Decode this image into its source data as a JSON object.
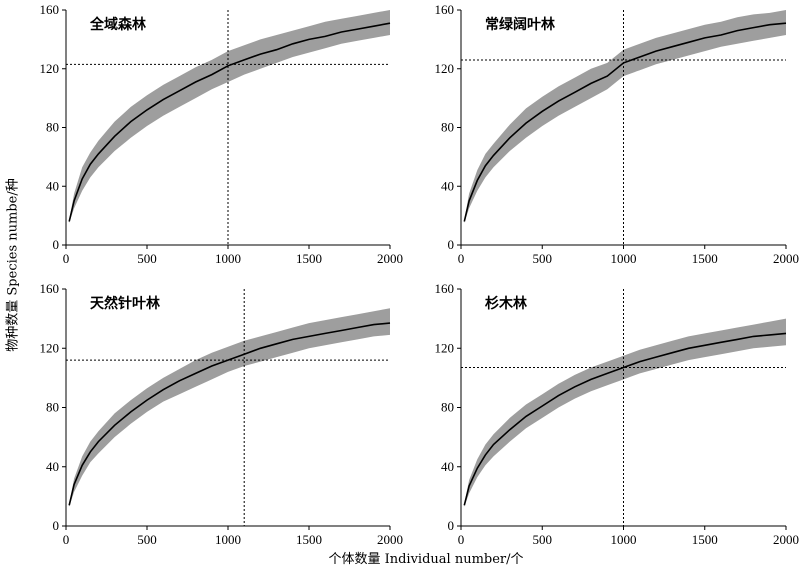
{
  "figure": {
    "ylabel": "物种数量 Species numbe/种",
    "xlabel": "个体数量 Individual number/个"
  },
  "chart_data": [
    {
      "type": "line",
      "title": "全域森林",
      "x_ticks": [
        "0",
        "500",
        "1000",
        "1500",
        "2000"
      ],
      "y_ticks": [
        "0",
        "40",
        "80",
        "120",
        "160"
      ],
      "xlim": [
        0,
        2000
      ],
      "ylim": [
        0,
        160
      ],
      "band_color": "#9e9e9e",
      "line_color": "#000000",
      "x": [
        20,
        50,
        100,
        150,
        200,
        300,
        400,
        500,
        600,
        700,
        800,
        900,
        1000,
        1100,
        1200,
        1300,
        1400,
        1500,
        1600,
        1700,
        1800,
        1900,
        2000
      ],
      "mean": [
        16,
        30,
        45,
        55,
        62,
        74,
        84,
        92,
        99,
        105,
        111,
        116,
        122,
        126,
        130,
        133,
        137,
        140,
        142,
        145,
        147,
        149,
        151
      ],
      "lower": [
        15,
        25,
        37,
        46,
        53,
        64,
        73,
        81,
        88,
        94,
        100,
        106,
        111,
        116,
        120,
        124,
        128,
        131,
        134,
        137,
        139,
        141,
        143
      ],
      "upper": [
        17,
        35,
        53,
        63,
        71,
        84,
        94,
        102,
        109,
        115,
        121,
        126,
        132,
        136,
        140,
        143,
        146,
        149,
        152,
        154,
        156,
        158,
        160
      ],
      "ref_x": 1000,
      "ref_y": 123
    },
    {
      "type": "line",
      "title": "常绿阔叶林",
      "x_ticks": [
        "0",
        "500",
        "1000",
        "1500",
        "2000"
      ],
      "y_ticks": [
        "0",
        "40",
        "80",
        "120",
        "160"
      ],
      "xlim": [
        0,
        2000
      ],
      "ylim": [
        0,
        160
      ],
      "band_color": "#9e9e9e",
      "line_color": "#000000",
      "x": [
        20,
        50,
        100,
        150,
        200,
        300,
        400,
        500,
        600,
        700,
        800,
        900,
        1000,
        1100,
        1200,
        1300,
        1400,
        1500,
        1600,
        1700,
        1800,
        1900,
        2000
      ],
      "mean": [
        16,
        30,
        44,
        54,
        61,
        73,
        83,
        91,
        98,
        104,
        110,
        115,
        124,
        128,
        132,
        135,
        138,
        141,
        143,
        146,
        148,
        150,
        151
      ],
      "lower": [
        15,
        25,
        37,
        46,
        53,
        64,
        73,
        81,
        88,
        94,
        100,
        106,
        115,
        119,
        123,
        126,
        129,
        132,
        135,
        137,
        139,
        141,
        143
      ],
      "upper": [
        17,
        35,
        51,
        62,
        69,
        82,
        93,
        101,
        108,
        114,
        120,
        124,
        133,
        137,
        141,
        144,
        147,
        150,
        152,
        155,
        157,
        158,
        160
      ],
      "ref_x": 1000,
      "ref_y": 126
    },
    {
      "type": "line",
      "title": "天然针叶林",
      "x_ticks": [
        "0",
        "500",
        "1000",
        "1500",
        "2000"
      ],
      "y_ticks": [
        "0",
        "40",
        "80",
        "120",
        "160"
      ],
      "xlim": [
        0,
        2000
      ],
      "ylim": [
        0,
        160
      ],
      "band_color": "#9e9e9e",
      "line_color": "#000000",
      "x": [
        20,
        50,
        100,
        150,
        200,
        300,
        400,
        500,
        600,
        700,
        800,
        900,
        1000,
        1100,
        1200,
        1300,
        1400,
        1500,
        1600,
        1700,
        1800,
        1900,
        2000
      ],
      "mean": [
        14,
        28,
        41,
        50,
        57,
        68,
        77,
        85,
        92,
        98,
        103,
        108,
        112,
        116,
        120,
        123,
        126,
        128,
        130,
        132,
        134,
        136,
        137
      ],
      "lower": [
        13,
        23,
        34,
        43,
        49,
        60,
        69,
        77,
        84,
        89,
        94,
        99,
        104,
        108,
        111,
        114,
        117,
        120,
        122,
        124,
        126,
        128,
        129
      ],
      "upper": [
        15,
        32,
        47,
        57,
        64,
        76,
        85,
        93,
        100,
        106,
        112,
        117,
        121,
        125,
        128,
        131,
        134,
        137,
        139,
        141,
        143,
        145,
        147
      ],
      "ref_x": 1100,
      "ref_y": 112
    },
    {
      "type": "line",
      "title": "杉木林",
      "x_ticks": [
        "0",
        "500",
        "1000",
        "1500",
        "2000"
      ],
      "y_ticks": [
        "0",
        "40",
        "80",
        "120",
        "160"
      ],
      "xlim": [
        0,
        2000
      ],
      "ylim": [
        0,
        160
      ],
      "band_color": "#9e9e9e",
      "line_color": "#000000",
      "x": [
        20,
        50,
        100,
        150,
        200,
        300,
        400,
        500,
        600,
        700,
        800,
        900,
        1000,
        1100,
        1200,
        1300,
        1400,
        1500,
        1600,
        1700,
        1800,
        1900,
        2000
      ],
      "mean": [
        14,
        27,
        39,
        48,
        55,
        65,
        74,
        81,
        88,
        94,
        99,
        103,
        107,
        111,
        114,
        117,
        120,
        122,
        124,
        126,
        128,
        129,
        130
      ],
      "lower": [
        13,
        22,
        33,
        41,
        47,
        57,
        66,
        73,
        80,
        86,
        91,
        95,
        99,
        103,
        106,
        109,
        112,
        114,
        116,
        118,
        120,
        121,
        122
      ],
      "upper": [
        15,
        31,
        45,
        55,
        62,
        73,
        82,
        89,
        96,
        102,
        107,
        111,
        115,
        119,
        122,
        125,
        128,
        130,
        132,
        134,
        136,
        138,
        140
      ],
      "ref_x": 1000,
      "ref_y": 107
    }
  ]
}
